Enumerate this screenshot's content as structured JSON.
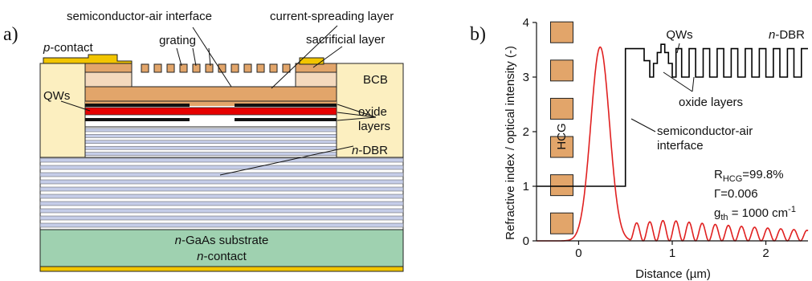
{
  "left_panel": {
    "panel_label": "a)",
    "labels": {
      "p_contact_italic": "p",
      "p_contact_rest": "-contact",
      "grating": "grating",
      "semiconductor_air_interface": "semiconductor-air interface",
      "current_spreading_layer": "current-spreading layer",
      "sacrificial_layer": "sacrificial layer",
      "bcb": "BCB",
      "qws": "QWs",
      "oxide": "oxide",
      "layers": "layers",
      "ndbr_italic": "n",
      "ndbr_rest": "-DBR",
      "substrate_italic": "n",
      "substrate_rest": "-GaAs substrate",
      "ncontact_italic": "n",
      "ncontact_rest": "-contact"
    },
    "colors": {
      "contact_gold": "#f2c500",
      "grating_orange": "#e2a56a",
      "sacrificial": "#f4d9bd",
      "bcb": "#fcefc0",
      "dbr_blue": "#c5cde8",
      "active_red": "#e60000",
      "substrate_green": "#9fd1b0"
    }
  },
  "right_panel": {
    "panel_label": "b)",
    "labels": {
      "hcg": "HCG",
      "qws": "QWs",
      "ndbr_italic": "n",
      "ndbr_rest": "-DBR",
      "oxide_layers": "oxide layers",
      "interface_line1": "semiconductor-air",
      "interface_line2": "interface",
      "r_hcg_main": "R",
      "r_hcg_sub": "HCG",
      "r_hcg_value": "=99.8%",
      "gamma": "Γ=0.006",
      "gth_main": "g",
      "gth_sub": "th",
      "gth_value": " = 1000 cm",
      "gth_sup": "-1"
    }
  },
  "chart_data": {
    "type": "line",
    "xlabel": "Distance (µm)",
    "ylabel": "Refractive index / optical intensity (-)",
    "xlim": [
      -0.45,
      2.45
    ],
    "ylim": [
      0,
      4
    ],
    "x_ticks": [
      0,
      1,
      2
    ],
    "y_ticks": [
      0,
      1,
      2,
      3,
      4
    ],
    "series": [
      {
        "color": "#000000",
        "points": [
          [
            -0.45,
            1.0
          ],
          [
            0.5,
            1.0
          ],
          [
            0.5,
            3.52
          ],
          [
            0.7,
            3.52
          ],
          [
            0.7,
            3.3
          ],
          [
            0.76,
            3.3
          ],
          [
            0.76,
            3.0
          ],
          [
            0.8,
            3.0
          ],
          [
            0.8,
            3.25
          ],
          [
            0.84,
            3.25
          ],
          [
            0.84,
            3.45
          ],
          [
            0.88,
            3.45
          ],
          [
            0.88,
            3.6
          ],
          [
            0.92,
            3.6
          ],
          [
            0.92,
            3.45
          ],
          [
            0.96,
            3.45
          ],
          [
            0.96,
            3.25
          ],
          [
            1.0,
            3.25
          ],
          [
            1.0,
            3.0
          ],
          [
            1.04,
            3.0
          ],
          [
            1.04,
            3.52
          ],
          [
            1.1,
            3.52
          ],
          [
            1.1,
            3.0
          ],
          [
            1.18,
            3.0
          ],
          [
            1.18,
            3.52
          ],
          [
            1.25,
            3.52
          ],
          [
            1.25,
            3.0
          ],
          [
            1.33,
            3.0
          ],
          [
            1.33,
            3.52
          ],
          [
            1.4,
            3.52
          ],
          [
            1.4,
            3.0
          ],
          [
            1.48,
            3.0
          ],
          [
            1.48,
            3.52
          ],
          [
            1.55,
            3.52
          ],
          [
            1.55,
            3.0
          ],
          [
            1.63,
            3.0
          ],
          [
            1.63,
            3.52
          ],
          [
            1.7,
            3.52
          ],
          [
            1.7,
            3.0
          ],
          [
            1.78,
            3.0
          ],
          [
            1.78,
            3.52
          ],
          [
            1.85,
            3.52
          ],
          [
            1.85,
            3.0
          ],
          [
            1.93,
            3.0
          ],
          [
            1.93,
            3.52
          ],
          [
            2.0,
            3.52
          ],
          [
            2.0,
            3.0
          ],
          [
            2.08,
            3.0
          ],
          [
            2.08,
            3.52
          ],
          [
            2.15,
            3.52
          ],
          [
            2.15,
            3.0
          ],
          [
            2.23,
            3.0
          ],
          [
            2.23,
            3.52
          ],
          [
            2.3,
            3.52
          ],
          [
            2.3,
            3.0
          ],
          [
            2.38,
            3.0
          ],
          [
            2.38,
            3.52
          ],
          [
            2.45,
            3.52
          ]
        ]
      },
      {
        "color": "#e02020",
        "gaussian": {
          "center": 0.23,
          "amplitude": 3.55,
          "sigma": 0.1
        },
        "oscillation": {
          "start": 0.55,
          "end": 2.45,
          "period": 0.14,
          "peak": 0.38,
          "decay": 0.45
        }
      }
    ],
    "hcg_blocks": 6
  }
}
